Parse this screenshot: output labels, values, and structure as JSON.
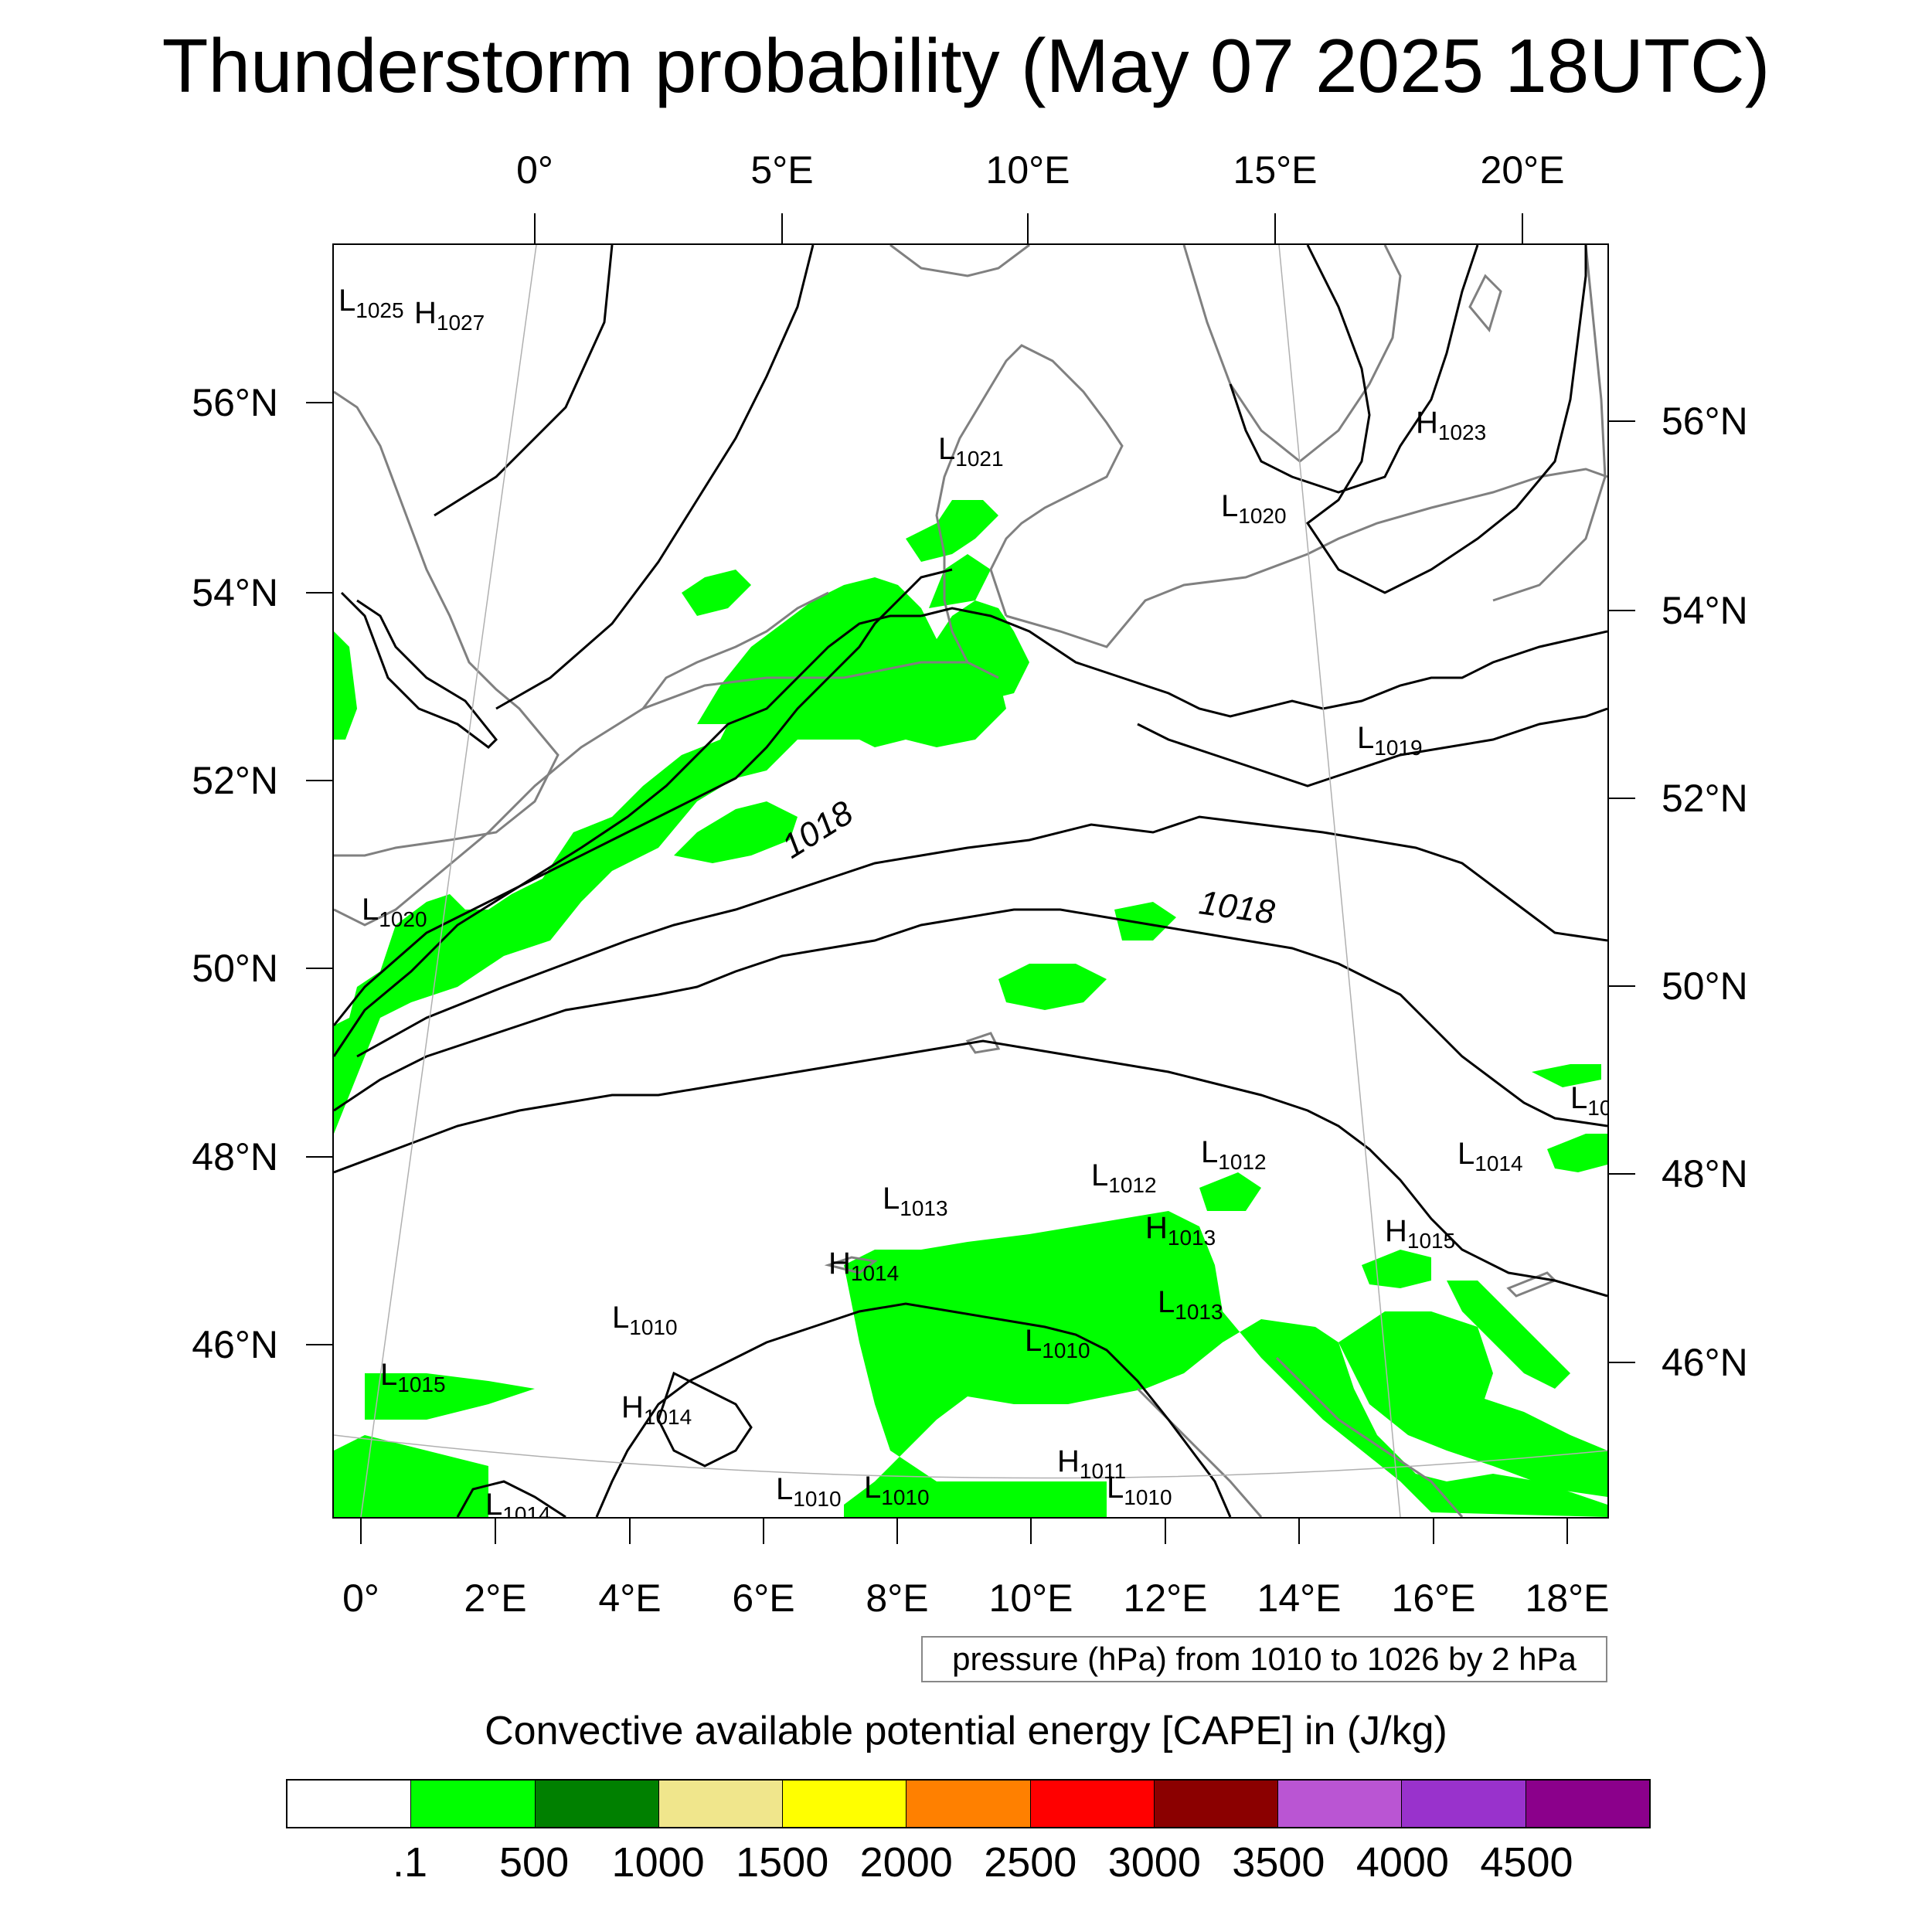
{
  "title": "Thunderstorm probability (May 07 2025 18UTC)",
  "map": {
    "top_lon_labels": [
      "0°",
      "5°E",
      "10°E",
      "15°E",
      "20°E"
    ],
    "bottom_lon_labels": [
      "0°",
      "2°E",
      "4°E",
      "6°E",
      "8°E",
      "10°E",
      "12°E",
      "14°E",
      "16°E",
      "18°E"
    ],
    "left_lat_labels": [
      "56°N",
      "54°N",
      "52°N",
      "50°N",
      "48°N",
      "46°N"
    ],
    "right_lat_labels": [
      "56°N",
      "54°N",
      "52°N",
      "50°N",
      "48°N",
      "46°N"
    ],
    "isobar_labels": [
      "1018",
      "1018"
    ],
    "pressure_centers": [
      {
        "type": "L",
        "value": "1025"
      },
      {
        "type": "H",
        "value": "1027"
      },
      {
        "type": "H",
        "value": "1023"
      },
      {
        "type": "L",
        "value": "1021"
      },
      {
        "type": "L",
        "value": "1020"
      },
      {
        "type": "L",
        "value": "1020"
      },
      {
        "type": "L",
        "value": "1019"
      },
      {
        "type": "L",
        "value": "10"
      },
      {
        "type": "L",
        "value": "1012"
      },
      {
        "type": "L",
        "value": "1014"
      },
      {
        "type": "L",
        "value": "1012"
      },
      {
        "type": "L",
        "value": "1013"
      },
      {
        "type": "H",
        "value": "1013"
      },
      {
        "type": "H",
        "value": "1015"
      },
      {
        "type": "H",
        "value": "1014"
      },
      {
        "type": "L",
        "value": "1013"
      },
      {
        "type": "L",
        "value": "1010"
      },
      {
        "type": "L",
        "value": "1015"
      },
      {
        "type": "L",
        "value": "1010"
      },
      {
        "type": "H",
        "value": "1014"
      },
      {
        "type": "H",
        "value": "1011"
      },
      {
        "type": "L",
        "value": "1010"
      },
      {
        "type": "L",
        "value": "1010"
      },
      {
        "type": "L",
        "value": "1010"
      },
      {
        "type": "L",
        "value": "1014"
      }
    ],
    "colors": {
      "cape_fill": "#00ff00",
      "coastline": "#808080",
      "isobar": "#000000"
    }
  },
  "pressure_note": "pressure (hPa) from 1010 to 1026 by 2 hPa",
  "colorbar": {
    "title": "Convective available potential energy [CAPE] in (J/kg)",
    "colors": [
      "#ffffff",
      "#00ff00",
      "#008000",
      "#f0e68c",
      "#ffff00",
      "#ff8000",
      "#ff0000",
      "#8b0000",
      "#ba55d3",
      "#9932cc",
      "#8b008b"
    ],
    "labels": [
      ".1",
      "500",
      "1000",
      "1500",
      "2000",
      "2500",
      "3000",
      "3500",
      "4000",
      "4500"
    ]
  }
}
